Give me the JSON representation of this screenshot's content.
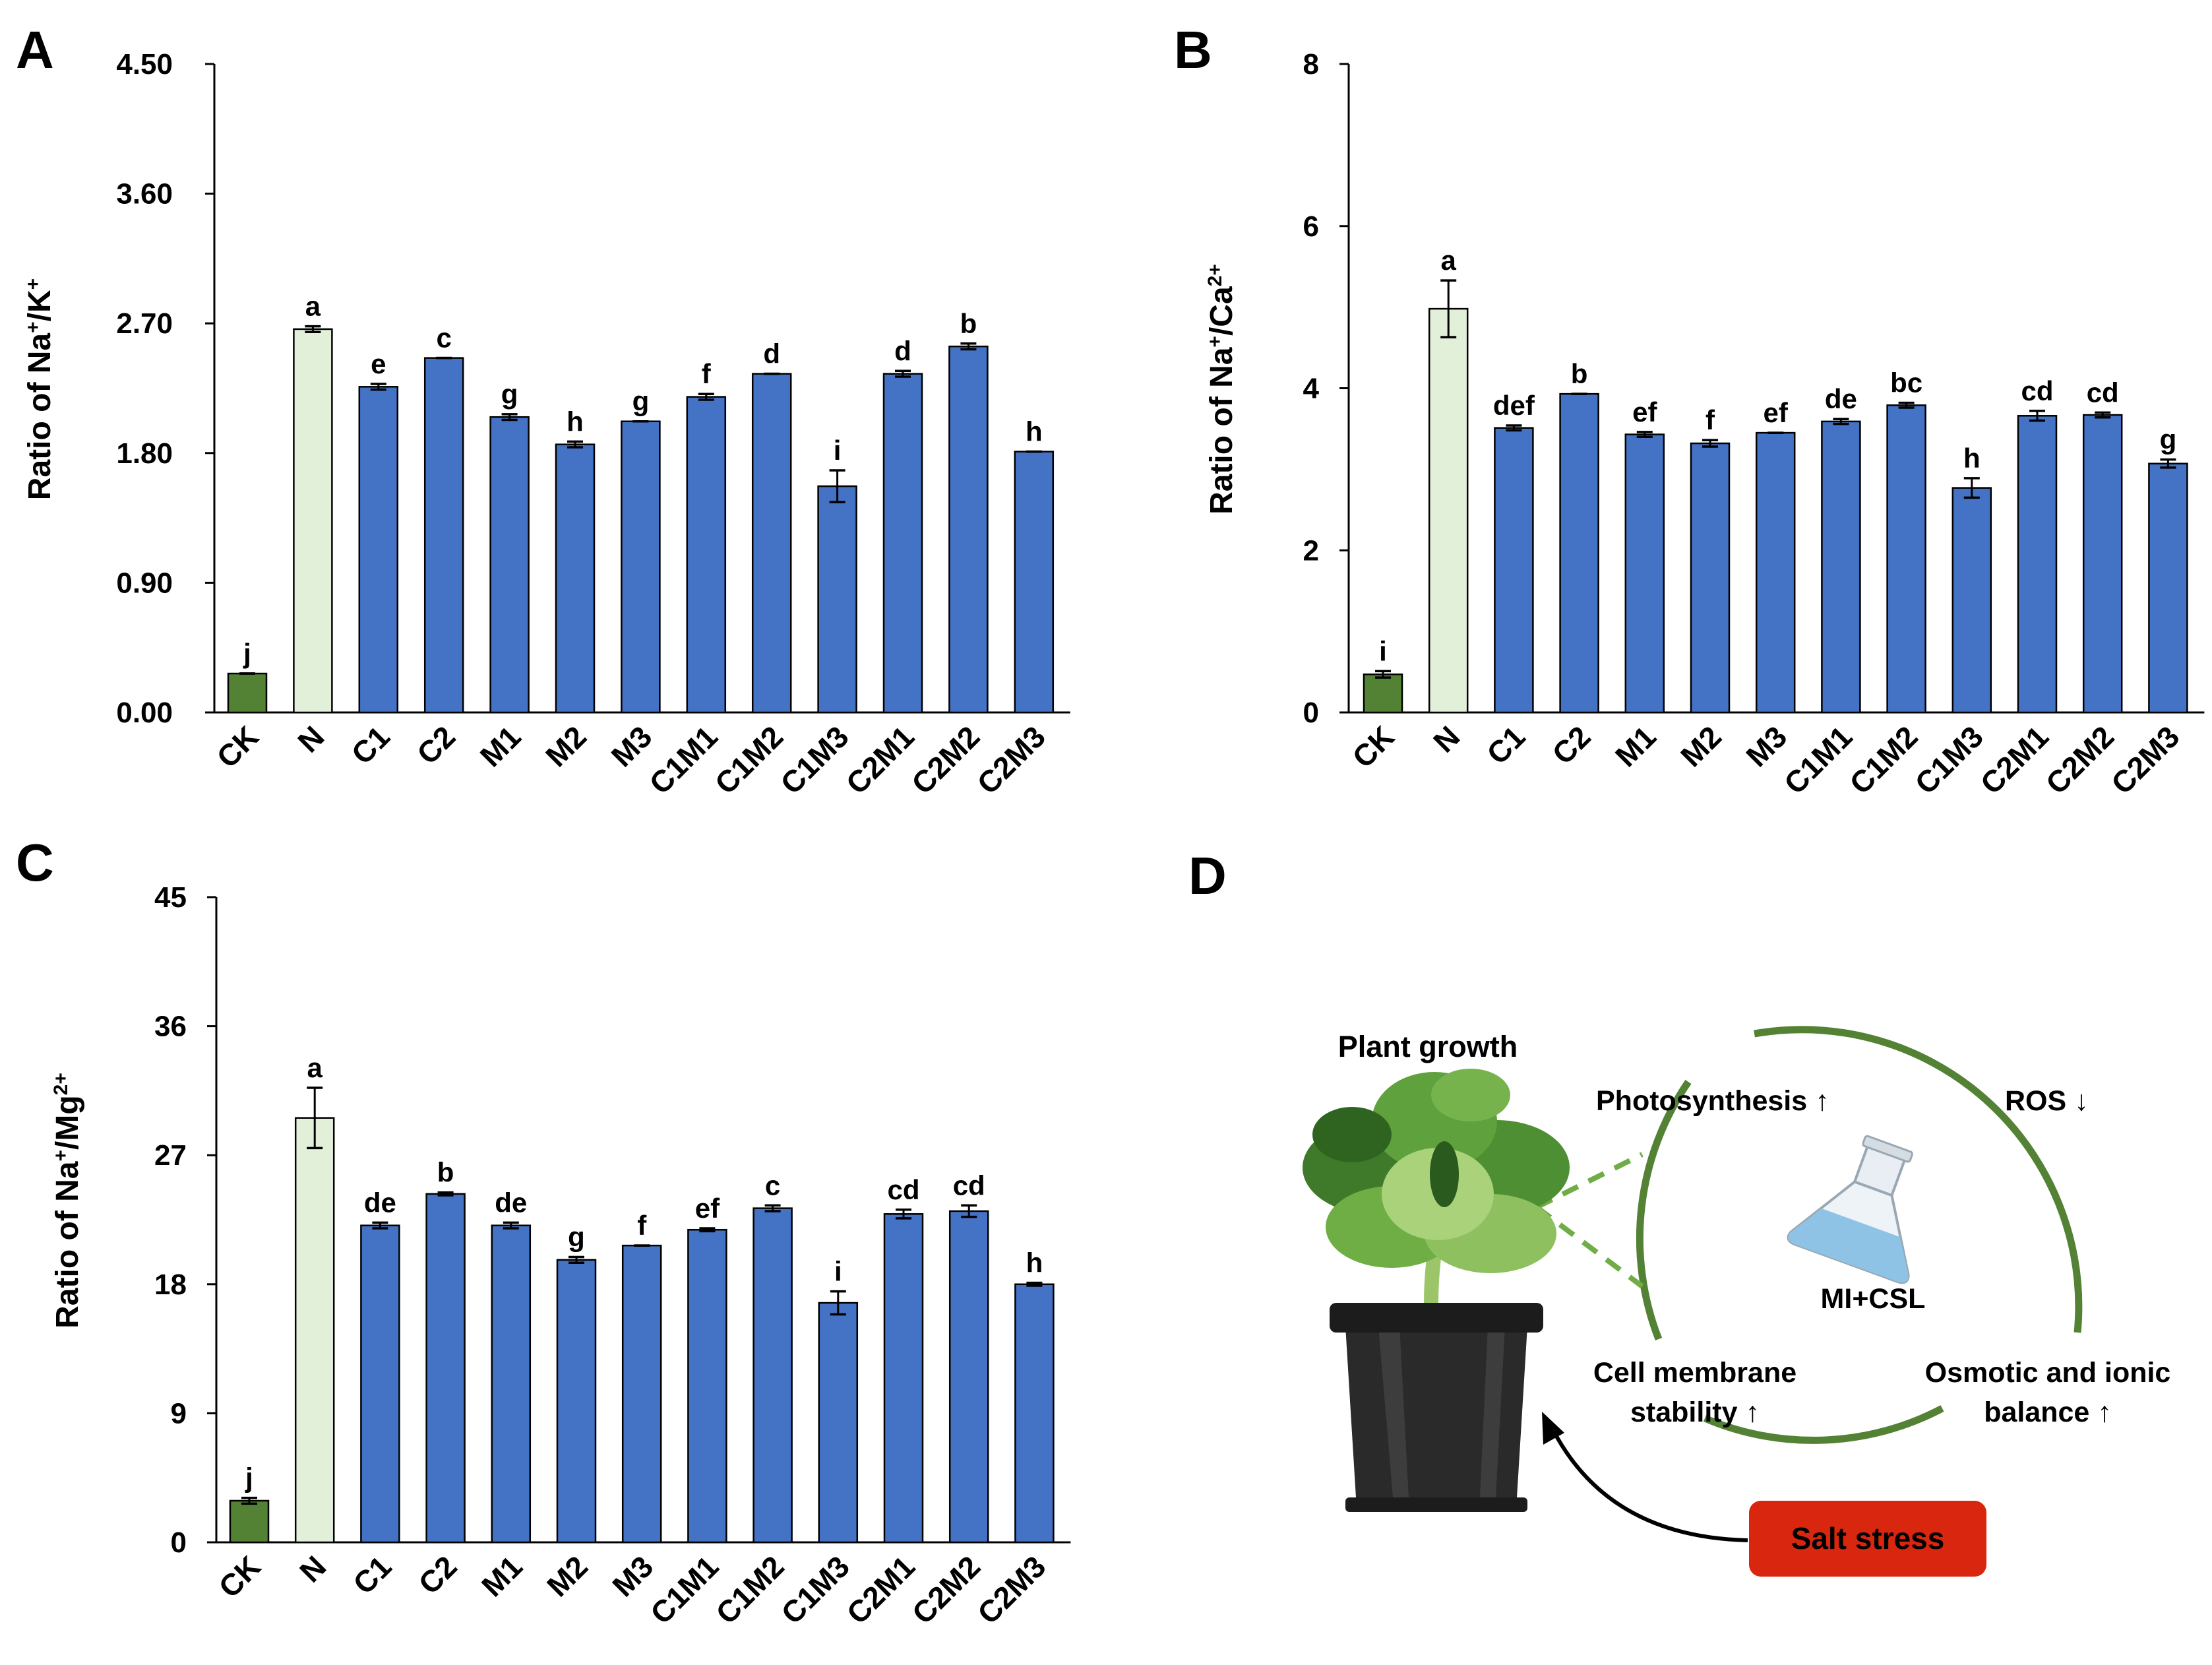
{
  "colors": {
    "ck": "#548235",
    "n": "#e2f0d9",
    "treat": "#4472c4",
    "outline": "#000000",
    "circle": "#548235",
    "salt_box": "#d9260e"
  },
  "chart_data": [
    {
      "panel": "A",
      "type": "bar",
      "title": "",
      "ylabel": "Ratio of Na⁺/K⁺",
      "ylabel_parts": [
        {
          "t": "Ratio of Na"
        },
        {
          "t": "+",
          "sup": true
        },
        {
          "t": "/K"
        },
        {
          "t": "+",
          "sup": true
        }
      ],
      "xlabel": "",
      "ylim": [
        0,
        4.5
      ],
      "yticks": [
        "0.00",
        "0.90",
        "1.80",
        "2.70",
        "3.60",
        "4.50"
      ],
      "categories": [
        "CK",
        "N",
        "C1",
        "C2",
        "M1",
        "M2",
        "M3",
        "C1M1",
        "C1M2",
        "C1M3",
        "C2M1",
        "C2M2",
        "C2M3"
      ],
      "values": [
        0.27,
        2.66,
        2.26,
        2.46,
        2.05,
        1.86,
        2.02,
        2.19,
        2.35,
        1.57,
        2.35,
        2.54,
        1.81
      ],
      "errors": [
        0.0,
        0.02,
        0.02,
        0.0,
        0.02,
        0.02,
        0.0,
        0.02,
        0.0,
        0.11,
        0.02,
        0.02,
        0.0
      ],
      "letters": [
        "j",
        "a",
        "e",
        "c",
        "g",
        "h",
        "g",
        "f",
        "d",
        "i",
        "d",
        "b",
        "h"
      ]
    },
    {
      "panel": "B",
      "type": "bar",
      "title": "",
      "ylabel": "Ratio of Na⁺/Ca²⁺",
      "ylabel_parts": [
        {
          "t": "Ratio of Na"
        },
        {
          "t": "+",
          "sup": true
        },
        {
          "t": "/Ca"
        },
        {
          "t": "2+",
          "sup": true
        }
      ],
      "xlabel": "",
      "ylim": [
        0,
        8
      ],
      "yticks": [
        "0",
        "2",
        "4",
        "6",
        "8"
      ],
      "categories": [
        "CK",
        "N",
        "C1",
        "C2",
        "M1",
        "M2",
        "M3",
        "C1M1",
        "C1M2",
        "C1M3",
        "C2M1",
        "C2M2",
        "C2M3"
      ],
      "values": [
        0.47,
        4.98,
        3.51,
        3.93,
        3.43,
        3.32,
        3.45,
        3.59,
        3.79,
        2.77,
        3.66,
        3.67,
        3.07
      ],
      "errors": [
        0.04,
        0.35,
        0.03,
        0.0,
        0.03,
        0.04,
        0.0,
        0.03,
        0.03,
        0.12,
        0.06,
        0.03,
        0.05
      ],
      "letters": [
        "i",
        "a",
        "def",
        "b",
        "ef",
        "f",
        "ef",
        "de",
        "bc",
        "h",
        "cd",
        "cd",
        "g"
      ]
    },
    {
      "panel": "C",
      "type": "bar",
      "title": "",
      "ylabel": "Ratio of Na⁺/Mg²⁺",
      "ylabel_parts": [
        {
          "t": "Ratio of Na"
        },
        {
          "t": "+",
          "sup": true
        },
        {
          "t": "/Mg"
        },
        {
          "t": "2+",
          "sup": true
        }
      ],
      "xlabel": "",
      "ylim": [
        0,
        45
      ],
      "yticks": [
        "0",
        "9",
        "18",
        "27",
        "36",
        "45"
      ],
      "categories": [
        "CK",
        "N",
        "C1",
        "C2",
        "M1",
        "M2",
        "M3",
        "C1M1",
        "C1M2",
        "C1M3",
        "C2M1",
        "C2M2",
        "C2M3"
      ],
      "values": [
        2.9,
        29.6,
        22.1,
        24.3,
        22.1,
        19.7,
        20.7,
        21.8,
        23.3,
        16.7,
        22.9,
        23.1,
        18.0
      ],
      "errors": [
        0.2,
        2.1,
        0.2,
        0.1,
        0.2,
        0.2,
        0.0,
        0.1,
        0.2,
        0.8,
        0.3,
        0.4,
        0.1
      ],
      "letters": [
        "j",
        "a",
        "de",
        "b",
        "de",
        "g",
        "f",
        "ef",
        "c",
        "i",
        "cd",
        "cd",
        "h"
      ]
    }
  ],
  "diagram": {
    "panel": "D",
    "plant_label": "Plant growth",
    "center_label": "MI+CSL",
    "effects": [
      {
        "text": "Photosynthesis",
        "arrow": "↑"
      },
      {
        "text": "ROS",
        "arrow": "↓"
      },
      {
        "lines": [
          "Cell membrane",
          "stability"
        ],
        "arrow": "↑"
      },
      {
        "lines": [
          "Osmotic and ionic",
          "balance"
        ],
        "arrow": "↑"
      }
    ],
    "stress_label": "Salt stress"
  }
}
